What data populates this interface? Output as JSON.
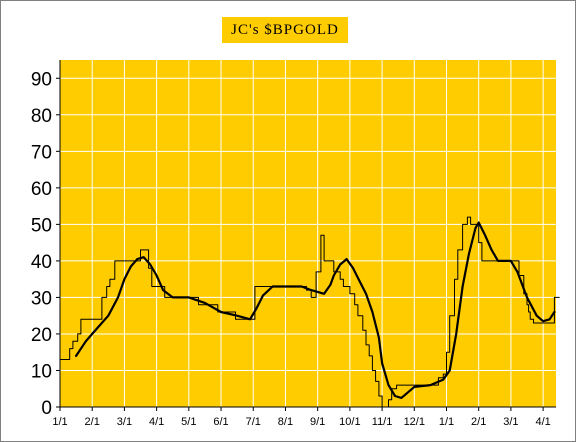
{
  "chart_data": {
    "type": "line",
    "title": "JC's $BPGOLD",
    "xlabel": "",
    "ylabel": "",
    "ylim": [
      0,
      95
    ],
    "xlim": [
      0,
      15.4
    ],
    "grid": true,
    "legend": "none",
    "y_ticks": [
      "0",
      "10",
      "20",
      "30",
      "40",
      "50",
      "60",
      "70",
      "80",
      "90"
    ],
    "x_ticks": [
      {
        "x": 0,
        "label": "1/1"
      },
      {
        "x": 1,
        "label": "2/1"
      },
      {
        "x": 2,
        "label": "3/1"
      },
      {
        "x": 3,
        "label": "4/1"
      },
      {
        "x": 4,
        "label": "5/1"
      },
      {
        "x": 5,
        "label": "6/1"
      },
      {
        "x": 6,
        "label": "7/1"
      },
      {
        "x": 7,
        "label": "8/1"
      },
      {
        "x": 8,
        "label": "9/1"
      },
      {
        "x": 9,
        "label": "10/1"
      },
      {
        "x": 10,
        "label": "11/1"
      },
      {
        "x": 11,
        "label": "12/1"
      },
      {
        "x": 12,
        "label": "1/1"
      },
      {
        "x": 13,
        "label": "2/1"
      },
      {
        "x": 14,
        "label": "3/1"
      },
      {
        "x": 15,
        "label": "4/1"
      }
    ],
    "series": [
      {
        "style": "step-thin",
        "x": [
          0,
          0.3,
          0.4,
          0.55,
          0.65,
          1.05,
          1.3,
          1.45,
          1.55,
          1.7,
          2.3,
          2.5,
          2.75,
          2.85,
          3.25,
          4.0,
          4.3,
          4.9,
          5.45,
          5.75,
          6.05,
          7.3,
          7.65,
          7.8,
          7.9,
          7.95,
          8.1,
          8.2,
          8.5,
          8.7,
          8.8,
          9.0,
          9.15,
          9.25,
          9.4,
          9.5,
          9.6,
          9.7,
          9.8,
          9.9,
          10.0,
          10.1,
          10.2,
          10.3,
          10.45,
          11.6,
          11.75,
          11.9,
          12.0,
          12.1,
          12.25,
          12.35,
          12.5,
          12.65,
          12.75,
          13.0,
          13.1,
          13.3,
          14.25,
          14.4,
          14.5,
          14.55,
          14.6,
          14.7,
          14.8,
          15.2,
          15.35,
          15.5
        ],
        "y": [
          13,
          16,
          18,
          20,
          24,
          24,
          30,
          33,
          35,
          40,
          40,
          43,
          38,
          33,
          30,
          30,
          28,
          26,
          24,
          24,
          33,
          33,
          32,
          30,
          30,
          37,
          47,
          40,
          37,
          35,
          33,
          31,
          28,
          25,
          21,
          17,
          14,
          10,
          7,
          3,
          0,
          0,
          2,
          5,
          6,
          6,
          8,
          9,
          15,
          25,
          35,
          43,
          50,
          52,
          50,
          45,
          40,
          40,
          36,
          31,
          28,
          26,
          24,
          23,
          23,
          23,
          30,
          30
        ]
      },
      {
        "style": "smooth-thick",
        "x": [
          0.5,
          0.8,
          1.0,
          1.2,
          1.5,
          1.8,
          2.0,
          2.2,
          2.4,
          2.6,
          2.8,
          3.0,
          3.2,
          3.5,
          4.0,
          4.5,
          5.0,
          5.5,
          5.9,
          6.1,
          6.3,
          6.6,
          7.0,
          7.5,
          7.8,
          8.0,
          8.2,
          8.4,
          8.5,
          8.7,
          8.9,
          9.1,
          9.3,
          9.5,
          9.7,
          9.9,
          10.0,
          10.2,
          10.4,
          10.6,
          11.0,
          11.5,
          11.9,
          12.1,
          12.3,
          12.5,
          12.7,
          12.9,
          13.0,
          13.2,
          13.4,
          13.6,
          14.0,
          14.2,
          14.5,
          14.8,
          15.0,
          15.2,
          15.35
        ],
        "y": [
          14,
          18,
          20,
          22,
          25,
          30,
          35,
          38.5,
          40.5,
          41,
          39,
          36,
          32,
          30,
          30,
          28.5,
          26,
          25,
          24,
          27,
          30.5,
          33,
          33,
          33,
          32,
          31.5,
          31,
          33.5,
          36,
          39,
          40.5,
          38,
          34.5,
          31,
          26,
          19,
          12,
          6,
          3,
          2.5,
          5.5,
          6,
          7.5,
          10,
          20,
          33,
          42,
          49,
          50.5,
          47,
          43,
          40,
          40,
          37,
          30,
          25,
          23.5,
          24,
          26
        ]
      }
    ]
  }
}
